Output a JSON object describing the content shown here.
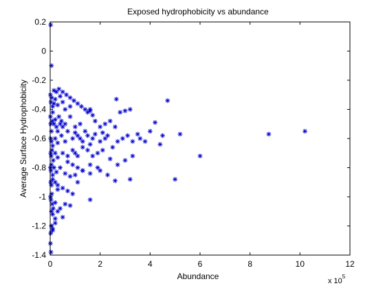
{
  "chart_data": {
    "type": "scatter",
    "title": "Exposed hydrophobicity vs abundance",
    "xlabel": "Abundance",
    "ylabel": "Average Surface Hydrophobicity",
    "x_multiplier": {
      "base": "x 10",
      "exponent": "5"
    },
    "xlim": [
      0,
      12
    ],
    "ylim": [
      -1.4,
      0.2
    ],
    "x_ticks": [
      "0",
      "2",
      "4",
      "6",
      "8",
      "10",
      "12"
    ],
    "y_ticks": [
      "0.2",
      "0",
      "-0.2",
      "-0.4",
      "-0.6",
      "-0.8",
      "-1",
      "-1.2",
      "-1.4"
    ],
    "grid": false,
    "legend": "none",
    "marker": "asterisk",
    "marker_color": "#0000cc",
    "axis_color": "#000000",
    "series": [
      {
        "x": [
          0.01,
          0.02,
          0.05,
          0.08,
          0.1,
          0.15,
          0.2,
          0.25,
          0.3,
          0.35,
          0.4,
          0.45,
          0.5,
          0.6,
          0.7,
          0.8,
          1.0,
          1.2,
          0.01,
          0.03,
          0.06,
          0.1,
          0.15,
          0.2,
          0.3,
          0.4,
          0.5,
          0.6,
          0.8,
          0.02,
          0.05,
          0.1,
          0.2,
          0.3,
          0.45,
          0.6,
          0.9,
          0.02,
          0.04,
          0.07,
          0.12,
          0.2,
          0.3,
          0.5,
          0.7,
          0.01,
          0.03,
          0.05,
          0.1,
          0.15,
          0.25,
          0.4,
          0.02,
          0.05,
          0.1,
          0.2,
          0.3,
          0.01,
          0.03,
          0.06,
          0.05,
          0.08,
          0.12,
          0.15,
          0.25,
          0.35,
          0.5,
          0.65,
          0.8,
          0.95,
          1.1,
          1.25,
          1.4,
          1.5,
          1.6,
          1.7,
          1.8,
          2.0,
          2.1,
          2.2,
          2.4,
          2.6,
          2.8,
          3.0,
          3.2,
          1.0,
          1.1,
          1.2,
          1.3,
          1.4,
          1.5,
          1.6,
          1.7,
          1.8,
          2.0,
          2.2,
          2.3,
          2.5,
          2.7,
          2.9,
          3.1,
          3.3,
          3.5,
          3.6,
          3.8,
          4.0,
          4.2,
          4.4,
          4.5,
          5.2,
          0.9,
          1.0,
          1.1,
          1.3,
          1.5,
          1.7,
          1.9,
          2.1,
          2.4,
          2.7,
          3.0,
          3.3,
          0.7,
          0.9,
          1.1,
          1.3,
          1.6,
          1.9,
          2.3,
          2.6,
          3.2,
          0.6,
          0.8,
          1.0,
          1.3,
          1.6,
          2.0,
          0.3,
          0.5,
          0.7,
          0.9,
          1.1,
          0.2,
          0.4,
          0.6,
          0.8,
          0.1,
          0.2,
          0.3,
          0.5,
          0.05,
          0.1,
          0.2,
          0.02,
          0.05,
          0.1,
          0.01,
          0.03,
          4.7,
          2.65,
          1.6,
          8.75,
          10.2,
          6.0,
          5.0,
          1.6,
          0.02,
          0.05
        ],
        "y": [
          -0.45,
          -0.5,
          -0.55,
          -0.48,
          -0.42,
          -0.5,
          -0.47,
          -0.52,
          -0.55,
          -0.45,
          -0.5,
          -0.48,
          -0.52,
          -0.5,
          -0.55,
          -0.45,
          -0.52,
          -0.5,
          -0.3,
          -0.35,
          -0.32,
          -0.38,
          -0.36,
          -0.33,
          -0.37,
          -0.31,
          -0.35,
          -0.4,
          -0.38,
          -0.6,
          -0.62,
          -0.65,
          -0.6,
          -0.63,
          -0.58,
          -0.62,
          -0.6,
          -0.7,
          -0.72,
          -0.68,
          -0.75,
          -0.7,
          -0.73,
          -0.7,
          -0.72,
          -0.8,
          -0.82,
          -0.78,
          -0.85,
          -0.8,
          -0.83,
          -0.8,
          -0.9,
          -0.92,
          -0.88,
          -0.9,
          -0.95,
          -1.0,
          -1.02,
          -0.98,
          -1.1,
          -1.05,
          -1.08,
          -0.27,
          -0.28,
          -0.26,
          -0.28,
          -0.3,
          -0.32,
          -0.34,
          -0.36,
          -0.38,
          -0.4,
          -0.42,
          -0.4,
          -0.44,
          -0.48,
          -0.52,
          -0.56,
          -0.5,
          -0.48,
          -0.52,
          -0.42,
          -0.41,
          -0.4,
          -0.56,
          -0.58,
          -0.6,
          -0.62,
          -0.55,
          -0.58,
          -0.64,
          -0.6,
          -0.57,
          -0.62,
          -0.6,
          -0.58,
          -0.66,
          -0.62,
          -0.6,
          -0.58,
          -0.62,
          -0.57,
          -0.6,
          -0.62,
          -0.55,
          -0.49,
          -0.64,
          -0.58,
          -0.57,
          -0.68,
          -0.7,
          -0.72,
          -0.66,
          -0.68,
          -0.72,
          -0.7,
          -0.68,
          -0.74,
          -0.78,
          -0.75,
          -0.72,
          -0.76,
          -0.78,
          -0.8,
          -0.82,
          -0.78,
          -0.8,
          -0.85,
          -0.89,
          -0.88,
          -0.84,
          -0.86,
          -0.85,
          -0.82,
          -0.84,
          -0.82,
          -0.92,
          -0.94,
          -0.96,
          -0.98,
          -0.9,
          -1.04,
          -1.08,
          -1.05,
          -1.06,
          -1.12,
          -1.15,
          -1.1,
          -1.14,
          -1.2,
          -1.22,
          -1.18,
          -1.25,
          -1.2,
          -1.23,
          -1.32,
          -1.38,
          -0.34,
          -0.33,
          -0.41,
          -0.57,
          -0.55,
          -0.72,
          -0.88,
          -1.02,
          0.18,
          -0.1
        ]
      }
    ]
  }
}
